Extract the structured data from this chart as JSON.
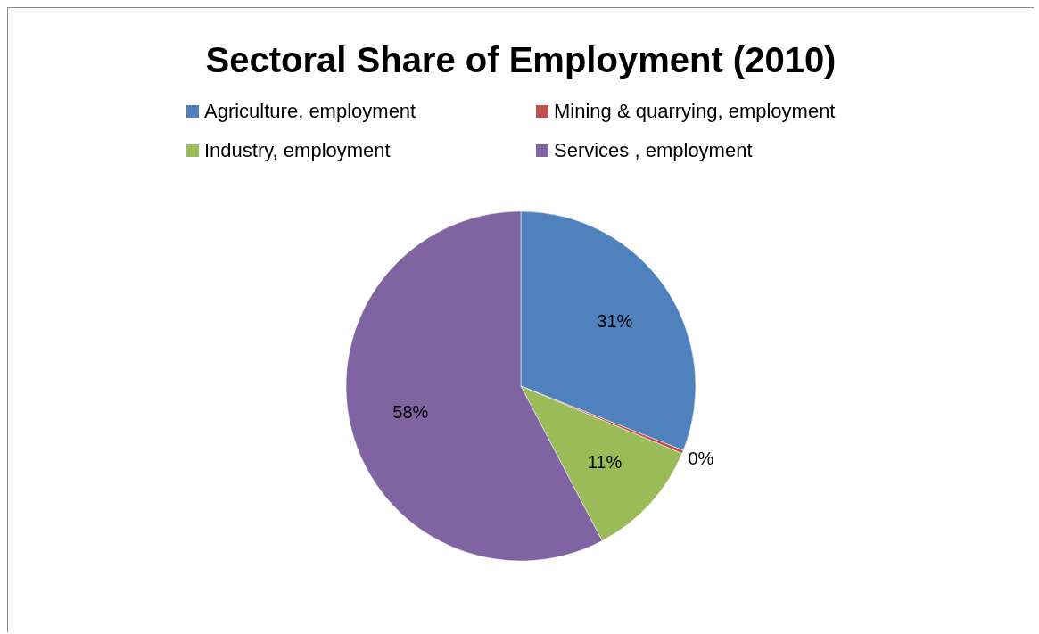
{
  "chart_data": {
    "type": "pie",
    "title": "Sectoral Share of Employment (2010)",
    "categories": [
      "Agriculture, employment",
      "Mining & quarrying, employment",
      "Industry, employment",
      "Services , employment"
    ],
    "values": [
      31,
      0.3,
      11,
      57.7
    ],
    "value_labels": [
      "31%",
      "0%",
      "11%",
      "58%"
    ],
    "colors": [
      "#4f81bd",
      "#c0504d",
      "#9bbb59",
      "#8064a2"
    ],
    "legend": "top"
  }
}
